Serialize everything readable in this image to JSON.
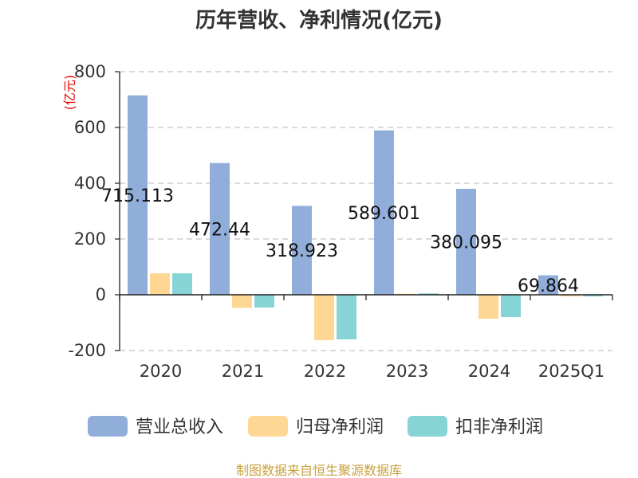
{
  "chart_data": {
    "type": "bar",
    "title": "历年营收、净利情况(亿元)",
    "xlabel": "",
    "ylabel": "(亿元)",
    "categories": [
      "2020",
      "2021",
      "2022",
      "2023",
      "2024",
      "2025Q1"
    ],
    "ylim": [
      -200,
      800
    ],
    "yticks": [
      800,
      600,
      400,
      200,
      0,
      -200
    ],
    "grid": true,
    "legend": "bottom",
    "data_labels_series": 0,
    "series": [
      {
        "name": "营业总收入",
        "color": "#91aedb",
        "values": [
          715.113,
          472.44,
          318.923,
          589.601,
          380.095,
          69.864
        ]
      },
      {
        "name": "归母净利润",
        "color": "#ffd795",
        "values": [
          77,
          -47,
          -163,
          4,
          -86,
          -6
        ]
      },
      {
        "name": "扣非净利润",
        "color": "#87d4d7",
        "values": [
          77,
          -46,
          -160,
          5,
          -80,
          -6
        ]
      }
    ]
  },
  "colors": {
    "ylabel": "#e60000",
    "source": "#c9a13f"
  },
  "footer": {
    "source": "制图数据来自恒生聚源数据库"
  }
}
